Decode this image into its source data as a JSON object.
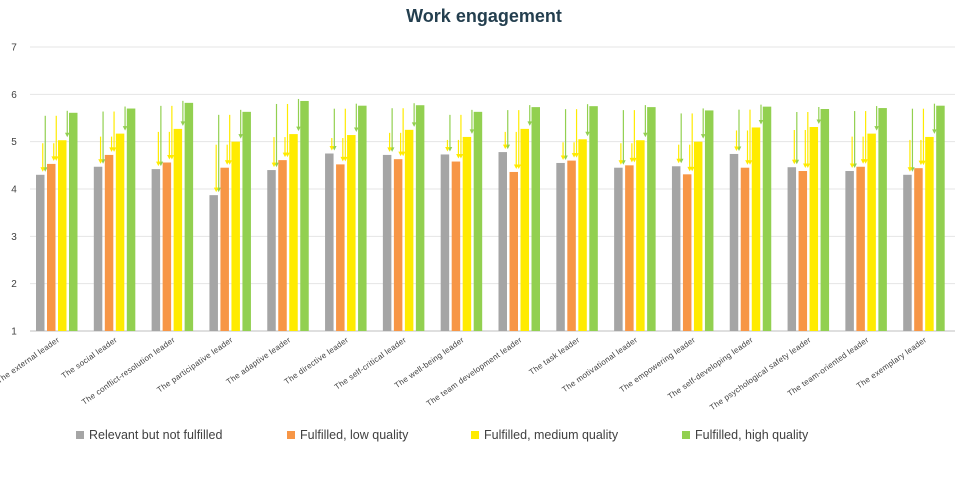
{
  "chart_data": {
    "type": "bar",
    "title": "Work engagement",
    "xlabel": "",
    "ylabel": "",
    "ylim": [
      1,
      7
    ],
    "yticks": [
      1,
      2,
      3,
      4,
      5,
      6,
      7
    ],
    "grid": true,
    "legend_position": "bottom",
    "categories": [
      "The external leader",
      "The social leader",
      "The conflict-resolution leader",
      "The participative leader",
      "The adaptive leader",
      "The directive leader",
      "The self-critical leader",
      "The well-being leader",
      "The team development leader",
      "The task leader",
      "The motivational leader",
      "The empowering leader",
      "The self-developing leader",
      "The psychological safety leader",
      "The team-oriented leader",
      "The exemplary leader"
    ],
    "series": [
      {
        "name": "Relevant but not fulfilled",
        "color": "#a5a5a5",
        "values": [
          4.3,
          4.47,
          4.42,
          3.87,
          4.4,
          4.75,
          4.72,
          4.73,
          4.78,
          4.55,
          4.45,
          4.48,
          4.74,
          4.46,
          4.38,
          4.3
        ]
      },
      {
        "name": "Fulfilled, low quality",
        "color": "#f79646",
        "values": [
          4.53,
          4.72,
          4.56,
          4.45,
          4.61,
          4.52,
          4.63,
          4.58,
          4.36,
          4.6,
          4.5,
          4.31,
          4.45,
          4.38,
          4.47,
          4.44
        ]
      },
      {
        "name": "Fulfilled, medium quality",
        "color": "#ffeb00",
        "values": [
          5.03,
          5.17,
          5.27,
          5.0,
          5.16,
          5.14,
          5.25,
          5.1,
          5.27,
          5.05,
          5.03,
          5.0,
          5.3,
          5.31,
          5.17,
          5.1
        ]
      },
      {
        "name": "Fulfilled, high quality",
        "color": "#92d050",
        "values": [
          5.61,
          5.7,
          5.82,
          5.63,
          5.86,
          5.76,
          5.77,
          5.63,
          5.73,
          5.75,
          5.73,
          5.66,
          5.74,
          5.69,
          5.71,
          5.76
        ]
      }
    ]
  }
}
